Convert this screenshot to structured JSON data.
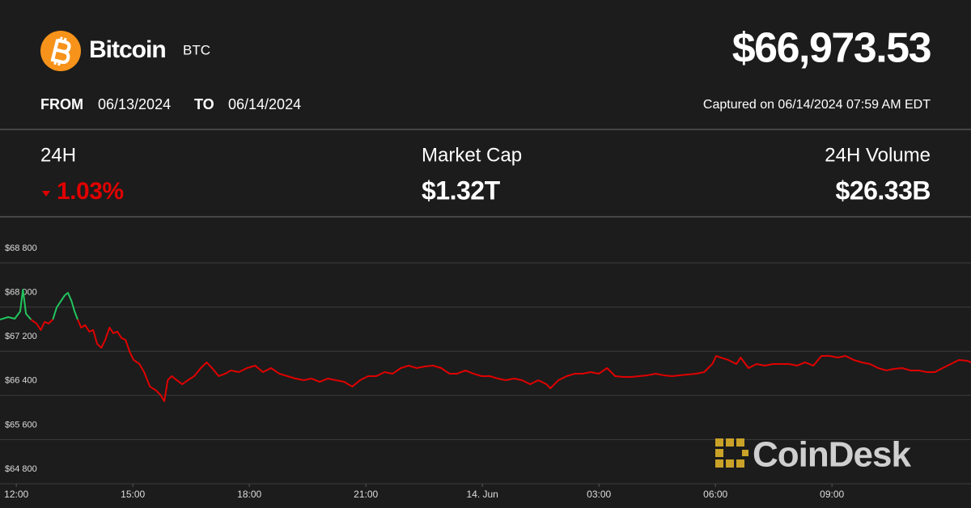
{
  "header": {
    "asset": "Bitcoin",
    "symbol": "BTC",
    "price": "$66,973.53",
    "from_label": "FROM",
    "from_date": "06/13/2024",
    "to_label": "TO",
    "to_date": "06/14/2024",
    "captured": "Captured on 06/14/2024 07:59 AM EDT"
  },
  "stats": [
    {
      "label": "24H",
      "value": "1.03%"
    },
    {
      "label": "Market Cap",
      "value": "$1.32T"
    },
    {
      "label": "24H Volume",
      "value": "$26.33B"
    }
  ],
  "watermark": "CoinDesk",
  "chart_data": {
    "type": "line",
    "xlim": [
      -0.42,
      24.58
    ],
    "ylim": [
      64800,
      69635
    ],
    "xticks": [
      {
        "value": 0,
        "label": "12:00"
      },
      {
        "value": 3,
        "label": "15:00"
      },
      {
        "value": 6,
        "label": "18:00"
      },
      {
        "value": 9,
        "label": "21:00"
      },
      {
        "value": 12,
        "label": "14. Jun"
      },
      {
        "value": 15,
        "label": "03:00"
      },
      {
        "value": 18,
        "label": "06:00"
      },
      {
        "value": 21,
        "label": "09:00"
      }
    ],
    "yticks": [
      {
        "value": 64800,
        "label": "$64 800"
      },
      {
        "value": 65600,
        "label": "$65 600"
      },
      {
        "value": 66400,
        "label": "$66 400"
      },
      {
        "value": 67200,
        "label": "$67 200"
      },
      {
        "value": 68000,
        "label": "$68 000"
      },
      {
        "value": 68800,
        "label": "$68 800"
      }
    ],
    "grid": true,
    "series": [
      {
        "color": "#22c55e",
        "x": [
          -0.42,
          -0.21,
          -0.04,
          0.1,
          0.17,
          0.25,
          0.38,
          null,
          0.94,
          1.04,
          1.15,
          1.25,
          1.33,
          1.42,
          1.5,
          1.58
        ],
        "values": [
          67774,
          67818,
          67789,
          67921,
          68317,
          67877,
          67774,
          null,
          67774,
          67994,
          68111,
          68214,
          68258,
          68111,
          67921,
          67774
        ]
      },
      {
        "color": "#e00000",
        "x": [
          0.38,
          0.52,
          0.63,
          0.73,
          0.83,
          0.94,
          null,
          1.58,
          1.67,
          1.77,
          1.88,
          1.98,
          2.08,
          2.19,
          2.29,
          2.4,
          2.5,
          2.6,
          2.71,
          2.81,
          2.92,
          3.02,
          3.17,
          3.29,
          3.44,
          3.58,
          3.71,
          3.81,
          3.9,
          4,
          4.13,
          4.27,
          4.42,
          4.58,
          4.75,
          4.9,
          5.04,
          5.21,
          5.38,
          5.52,
          5.73,
          5.94,
          6.15,
          6.35,
          6.56,
          6.77,
          6.98,
          7.19,
          7.4,
          7.6,
          7.81,
          8.02,
          8.23,
          8.44,
          8.65,
          8.85,
          9.06,
          9.27,
          9.48,
          9.69,
          9.9,
          10.1,
          10.31,
          10.52,
          10.73,
          10.94,
          11.15,
          11.35,
          11.56,
          11.77,
          11.98,
          12.19,
          12.4,
          12.6,
          12.81,
          13.02,
          13.23,
          13.44,
          13.65,
          13.75,
          13.96,
          14.17,
          14.38,
          14.58,
          14.79,
          15,
          15.21,
          15.42,
          15.63,
          15.83,
          16.04,
          16.25,
          16.46,
          16.67,
          16.88,
          17.08,
          17.29,
          17.5,
          17.71,
          17.92,
          18.02,
          18.13,
          18.33,
          18.54,
          18.65,
          18.85,
          19.06,
          19.27,
          19.48,
          19.69,
          19.9,
          20.1,
          20.31,
          20.52,
          20.73,
          20.94,
          21.15,
          21.35,
          21.56,
          21.77,
          21.98,
          22.19,
          22.4,
          22.6,
          22.81,
          23.02,
          23.23,
          23.44,
          23.65,
          23.85,
          24.06,
          24.27,
          24.48,
          24.58
        ],
        "values": [
          67774,
          67701,
          67584,
          67731,
          67701,
          67774,
          null,
          67774,
          67628,
          67672,
          67555,
          67584,
          67335,
          67262,
          67408,
          67628,
          67525,
          67555,
          67438,
          67408,
          67188,
          67042,
          66969,
          66822,
          66559,
          66500,
          66412,
          66295,
          66676,
          66749,
          66676,
          66602,
          66676,
          66749,
          66895,
          66998,
          66895,
          66749,
          66793,
          66852,
          66822,
          66895,
          66939,
          66822,
          66895,
          66793,
          66749,
          66705,
          66676,
          66705,
          66646,
          66705,
          66676,
          66646,
          66559,
          66676,
          66749,
          66749,
          66822,
          66793,
          66895,
          66939,
          66895,
          66925,
          66939,
          66895,
          66793,
          66793,
          66852,
          66793,
          66749,
          66749,
          66705,
          66676,
          66705,
          66676,
          66602,
          66676,
          66602,
          66529,
          66676,
          66749,
          66793,
          66793,
          66822,
          66793,
          66895,
          66749,
          66734,
          66734,
          66749,
          66764,
          66793,
          66764,
          66749,
          66764,
          66778,
          66793,
          66822,
          66969,
          67115,
          67086,
          67042,
          66969,
          67086,
          66895,
          66969,
          66939,
          66969,
          66969,
          66969,
          66939,
          66998,
          66939,
          67115,
          67115,
          67086,
          67115,
          67042,
          66998,
          66969,
          66895,
          66852,
          66881,
          66895,
          66852,
          66852,
          66822,
          66822,
          66895,
          66969,
          67042,
          67027,
          66998
        ]
      }
    ]
  }
}
